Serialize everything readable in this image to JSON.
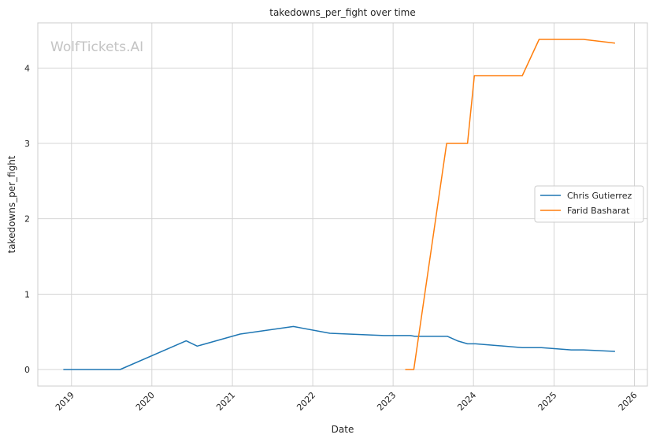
{
  "watermark": "WolfTickets.AI",
  "chart_data": {
    "type": "line",
    "title": "takedowns_per_fight over time",
    "xlabel": "Date",
    "ylabel": "takedowns_per_fight",
    "xlim": [
      "2018-08-01",
      "2026-03-01"
    ],
    "ylim": [
      -0.22,
      4.6
    ],
    "x_ticks": [
      "2019",
      "2020",
      "2021",
      "2022",
      "2023",
      "2024",
      "2025",
      "2026"
    ],
    "y_ticks": [
      0,
      1,
      2,
      3,
      4
    ],
    "grid": true,
    "legend_position": "center-right",
    "series": [
      {
        "name": "Chris Gutierrez",
        "color": "#1f77b4",
        "points": [
          [
            "2018-11-25",
            0.0
          ],
          [
            "2019-08-10",
            0.0
          ],
          [
            "2020-06-05",
            0.38
          ],
          [
            "2020-07-25",
            0.31
          ],
          [
            "2021-02-05",
            0.47
          ],
          [
            "2021-10-05",
            0.57
          ],
          [
            "2022-03-20",
            0.48
          ],
          [
            "2022-11-20",
            0.45
          ],
          [
            "2023-03-20",
            0.45
          ],
          [
            "2023-04-10",
            0.44
          ],
          [
            "2023-09-05",
            0.44
          ],
          [
            "2023-10-20",
            0.38
          ],
          [
            "2023-12-05",
            0.34
          ],
          [
            "2024-01-10",
            0.34
          ],
          [
            "2024-08-10",
            0.29
          ],
          [
            "2024-11-05",
            0.29
          ],
          [
            "2025-03-20",
            0.26
          ],
          [
            "2025-05-15",
            0.26
          ],
          [
            "2025-10-05",
            0.24
          ]
        ]
      },
      {
        "name": "Farid Basharat",
        "color": "#ff7f0e",
        "points": [
          [
            "2023-02-25",
            0.0
          ],
          [
            "2023-04-05",
            0.0
          ],
          [
            "2023-09-01",
            3.0
          ],
          [
            "2023-12-05",
            3.0
          ],
          [
            "2024-01-05",
            3.9
          ],
          [
            "2024-08-10",
            3.9
          ],
          [
            "2024-10-25",
            4.38
          ],
          [
            "2025-05-15",
            4.38
          ],
          [
            "2025-10-05",
            4.33
          ]
        ]
      }
    ]
  }
}
